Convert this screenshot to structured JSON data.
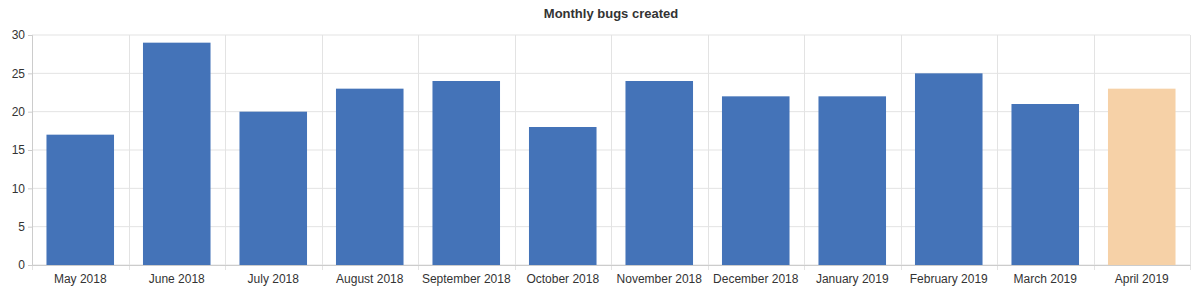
{
  "chart_data": {
    "type": "bar",
    "title": "Monthly bugs created",
    "categories": [
      "May 2018",
      "June 2018",
      "July 2018",
      "August 2018",
      "September 2018",
      "October 2018",
      "November 2018",
      "December 2018",
      "January 2019",
      "February 2019",
      "March 2019",
      "April 2019"
    ],
    "values": [
      17,
      29,
      20,
      23,
      24,
      18,
      24,
      22,
      22,
      25,
      21,
      23
    ],
    "colors": [
      "#4473b8",
      "#4473b8",
      "#4473b8",
      "#4473b8",
      "#4473b8",
      "#4473b8",
      "#4473b8",
      "#4473b8",
      "#4473b8",
      "#4473b8",
      "#4473b8",
      "#f6d1a7"
    ],
    "ylim": [
      0,
      30
    ],
    "yticks": [
      0,
      5,
      10,
      15,
      20,
      25,
      30
    ],
    "grid": true
  }
}
